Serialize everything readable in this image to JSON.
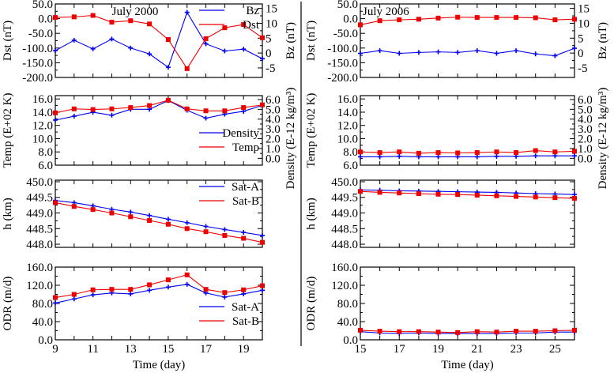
{
  "chart_data": [
    {
      "type": "line",
      "id": "left-dst-bz",
      "title": "July 2000",
      "xlabel": "",
      "x": [
        9,
        10,
        11,
        12,
        13,
        14,
        15,
        16,
        17,
        18,
        19,
        20
      ],
      "xlim": [
        9,
        20
      ],
      "ylabel": "Dst (nT)",
      "ylim": [
        -200,
        50
      ],
      "yticks": [
        "50.0",
        "0.0",
        "-50.0",
        "-100.0",
        "-150.0",
        "-200.0"
      ],
      "ytick_values": [
        50,
        0,
        -50,
        -100,
        -150,
        -200
      ],
      "y2label": "Bz (nT)",
      "y2lim": [
        -8.2,
        16.5
      ],
      "y2ticks": [
        "15",
        "10",
        "5",
        "0",
        "-5"
      ],
      "y2tick_values": [
        15,
        10,
        5,
        0,
        -5
      ],
      "legend": "top-right",
      "series": [
        {
          "name": "Bz",
          "axis": "right",
          "color": "#0000ee",
          "marker": "plus",
          "values": [
            0.8,
            4.3,
            1.4,
            4.7,
            1.7,
            -0.3,
            -4.8,
            13.7,
            3.1,
            0.7,
            1.3,
            -1.9
          ]
        },
        {
          "name": "Dst",
          "axis": "left",
          "color": "#ee0000",
          "marker": "square",
          "values": [
            4,
            6,
            11,
            -12,
            -7,
            -18,
            -71,
            -170,
            -68,
            -31,
            -20,
            -65
          ]
        }
      ]
    },
    {
      "type": "line",
      "id": "left-temp-density",
      "title": "",
      "x": [
        9,
        10,
        11,
        12,
        13,
        14,
        15,
        16,
        17,
        18,
        19,
        20
      ],
      "xlim": [
        9,
        20
      ],
      "ylabel": "Temp (E+02 K)",
      "ylim": [
        6,
        16.5
      ],
      "yticks": [
        "16.0",
        "14.0",
        "12.0",
        "10.0",
        "8.0",
        "6.0"
      ],
      "ytick_values": [
        16,
        14,
        12,
        10,
        8,
        6
      ],
      "y2label": "Density (E-12 kg/m³)",
      "y2lim": [
        -0.7,
        6.4
      ],
      "y2ticks": [
        "6.0",
        "5.0",
        "4.0",
        "3.0",
        "2.0",
        "1.0",
        "0.0"
      ],
      "y2tick_values": [
        6,
        5,
        4,
        3,
        2,
        1,
        0
      ],
      "legend": "center-right",
      "series": [
        {
          "name": "Density",
          "axis": "right",
          "color": "#0000ee",
          "marker": "plus",
          "values": [
            3.9,
            4.3,
            4.7,
            4.4,
            5.0,
            5.0,
            5.9,
            4.9,
            4.1,
            4.5,
            4.8,
            5.4
          ]
        },
        {
          "name": "Temp",
          "axis": "left",
          "color": "#ee0000",
          "marker": "square",
          "values": [
            13.9,
            14.5,
            14.4,
            14.5,
            14.7,
            15.0,
            15.8,
            14.5,
            14.2,
            14.2,
            14.7,
            15.1
          ]
        }
      ]
    },
    {
      "type": "line",
      "id": "left-altitude",
      "title": "",
      "x": [
        9,
        10,
        11,
        12,
        13,
        14,
        15,
        16,
        17,
        18,
        19,
        20
      ],
      "xlim": [
        9,
        20
      ],
      "ylabel": "h (km)",
      "ylim": [
        447.9,
        450.05
      ],
      "yticks": [
        "450.0",
        "449.5",
        "449.0",
        "448.5",
        "448.0"
      ],
      "ytick_values": [
        450,
        449.5,
        449,
        448.5,
        448
      ],
      "legend": "top-right",
      "series": [
        {
          "name": "Sat-A",
          "axis": "left",
          "color": "#0000ee",
          "marker": "plus",
          "values": [
            449.4,
            449.33,
            449.23,
            449.12,
            449.03,
            448.92,
            448.8,
            448.69,
            448.57,
            448.47,
            448.38,
            448.28
          ]
        },
        {
          "name": "Sat-B",
          "axis": "left",
          "color": "#ee0000",
          "marker": "square",
          "values": [
            449.33,
            449.21,
            449.11,
            449.0,
            448.88,
            448.76,
            448.64,
            448.5,
            448.4,
            448.28,
            448.19,
            448.06
          ]
        }
      ]
    },
    {
      "type": "line",
      "id": "left-odr",
      "title": "",
      "x": [
        9,
        10,
        11,
        12,
        13,
        14,
        15,
        16,
        17,
        18,
        19,
        20
      ],
      "xlim": [
        9,
        20
      ],
      "xlabel": "Time (day)",
      "xticks": [
        "9",
        "11",
        "13",
        "15",
        "17",
        "19"
      ],
      "xtick_values": [
        9,
        11,
        13,
        15,
        17,
        19
      ],
      "ylabel": "ODR (m/d)",
      "ylim": [
        0,
        160
      ],
      "yticks": [
        "160.0",
        "120.0",
        "80.0",
        "40.0",
        "0.0"
      ],
      "ytick_values": [
        160,
        120,
        80,
        40,
        0
      ],
      "legend": "bottom-right",
      "series": [
        {
          "name": "Sat-A",
          "axis": "left",
          "color": "#0000ee",
          "marker": "plus",
          "values": [
            81,
            90,
            99,
            103,
            101,
            109,
            116,
            122,
            103,
            94,
            101,
            109
          ]
        },
        {
          "name": "Sat-B",
          "axis": "left",
          "color": "#ee0000",
          "marker": "square",
          "values": [
            93,
            100,
            110,
            111,
            111,
            121,
            132,
            143,
            111,
            104,
            110,
            119
          ]
        }
      ]
    },
    {
      "type": "line",
      "id": "right-dst-bz",
      "title": "July 2006",
      "x": [
        15,
        16,
        17,
        18,
        19,
        20,
        21,
        22,
        23,
        24,
        25,
        26
      ],
      "xlim": [
        15,
        26
      ],
      "ylabel": "Dst (nT)",
      "ylim": [
        -200,
        50
      ],
      "yticks": [
        "50.0",
        "0.0",
        "-50.0",
        "-100.0",
        "-150.0",
        "-200.0"
      ],
      "ytick_values": [
        50,
        0,
        -50,
        -100,
        -150,
        -200
      ],
      "y2label": "Bz (nT)",
      "y2lim": [
        -8.2,
        16.5
      ],
      "y2ticks": [
        "15",
        "10",
        "5",
        "0",
        "-5"
      ],
      "y2tick_values": [
        15,
        10,
        5,
        0,
        -5
      ],
      "legend": "none",
      "series": [
        {
          "name": "Bz",
          "axis": "right",
          "color": "#0000ee",
          "marker": "plus",
          "values": [
            -0.1,
            0.8,
            -0.1,
            0.2,
            0.4,
            0.2,
            0.8,
            -0.1,
            0.8,
            -0.3,
            -0.9,
            1.6
          ]
        },
        {
          "name": "Dst",
          "axis": "left",
          "color": "#ee0000",
          "marker": "square",
          "values": [
            -21,
            -7,
            -4,
            -2,
            2,
            5,
            4,
            4,
            4,
            3,
            -4,
            -2
          ]
        }
      ]
    },
    {
      "type": "line",
      "id": "right-temp-density",
      "title": "",
      "x": [
        15,
        16,
        17,
        18,
        19,
        20,
        21,
        22,
        23,
        24,
        25,
        26
      ],
      "xlim": [
        15,
        26
      ],
      "ylabel": "Temp (E+02 K)",
      "ylim": [
        6,
        16.5
      ],
      "yticks": [
        "16.0",
        "14.0",
        "12.0",
        "10.0",
        "8.0",
        "6.0"
      ],
      "ytick_values": [
        16,
        14,
        12,
        10,
        8,
        6
      ],
      "y2label": "Density (E-12 kg/m³)",
      "y2lim": [
        -0.7,
        6.4
      ],
      "y2ticks": [
        "6.0",
        "5.0",
        "4.0",
        "3.0",
        "2.0",
        "1.0",
        "0.0"
      ],
      "y2tick_values": [
        6,
        5,
        4,
        3,
        2,
        1,
        0
      ],
      "legend": "none",
      "series": [
        {
          "name": "Density",
          "axis": "right",
          "color": "#0000ee",
          "marker": "plus",
          "values": [
            0.15,
            0.15,
            0.2,
            0.15,
            0.15,
            0.15,
            0.15,
            0.2,
            0.2,
            0.25,
            0.25,
            0.25
          ]
        },
        {
          "name": "Temp",
          "axis": "left",
          "color": "#ee0000",
          "marker": "square",
          "values": [
            8.0,
            7.9,
            8.0,
            7.8,
            7.9,
            7.85,
            7.9,
            8.0,
            7.9,
            8.2,
            8.0,
            8.1
          ]
        }
      ]
    },
    {
      "type": "line",
      "id": "right-altitude",
      "title": "",
      "x": [
        15,
        16,
        17,
        18,
        19,
        20,
        21,
        22,
        23,
        24,
        25,
        26
      ],
      "xlim": [
        15,
        26
      ],
      "ylabel": "h (km)",
      "ylim": [
        447.9,
        450.05
      ],
      "yticks": [
        "450.0",
        "449.5",
        "449.0",
        "448.5",
        "448.0"
      ],
      "ytick_values": [
        450,
        449.5,
        449,
        448.5,
        448
      ],
      "legend": "none",
      "series": [
        {
          "name": "Sat-A",
          "axis": "left",
          "color": "#0000ee",
          "marker": "plus",
          "values": [
            449.74,
            449.73,
            449.71,
            449.7,
            449.69,
            449.68,
            449.67,
            449.66,
            449.64,
            449.62,
            449.61,
            449.59
          ]
        },
        {
          "name": "Sat-B",
          "axis": "left",
          "color": "#ee0000",
          "marker": "square",
          "values": [
            449.69,
            449.66,
            449.64,
            449.62,
            449.6,
            449.59,
            449.57,
            449.55,
            449.53,
            449.51,
            449.49,
            449.47
          ]
        }
      ]
    },
    {
      "type": "line",
      "id": "right-odr",
      "title": "",
      "x": [
        15,
        16,
        17,
        18,
        19,
        20,
        21,
        22,
        23,
        24,
        25,
        26
      ],
      "xlim": [
        15,
        26
      ],
      "xlabel": "Time (day)",
      "xticks": [
        "15",
        "17",
        "19",
        "21",
        "23",
        "25"
      ],
      "xtick_values": [
        15,
        17,
        19,
        21,
        23,
        25
      ],
      "ylabel": "ODR (m/d)",
      "ylim": [
        0,
        160
      ],
      "yticks": [
        "160.0",
        "120.0",
        "80.0",
        "40.0",
        "0.0"
      ],
      "ytick_values": [
        160,
        120,
        80,
        40,
        0
      ],
      "legend": "none",
      "series": [
        {
          "name": "Sat-A",
          "axis": "left",
          "color": "#0000ee",
          "marker": "plus",
          "values": [
            18,
            15,
            14,
            15,
            14,
            14,
            14,
            14,
            15,
            15,
            17,
            17
          ]
        },
        {
          "name": "Sat-B",
          "axis": "left",
          "color": "#ee0000",
          "marker": "square",
          "values": [
            21,
            19,
            18,
            18,
            17,
            16,
            18,
            17,
            19,
            19,
            20,
            21
          ]
        }
      ]
    }
  ]
}
